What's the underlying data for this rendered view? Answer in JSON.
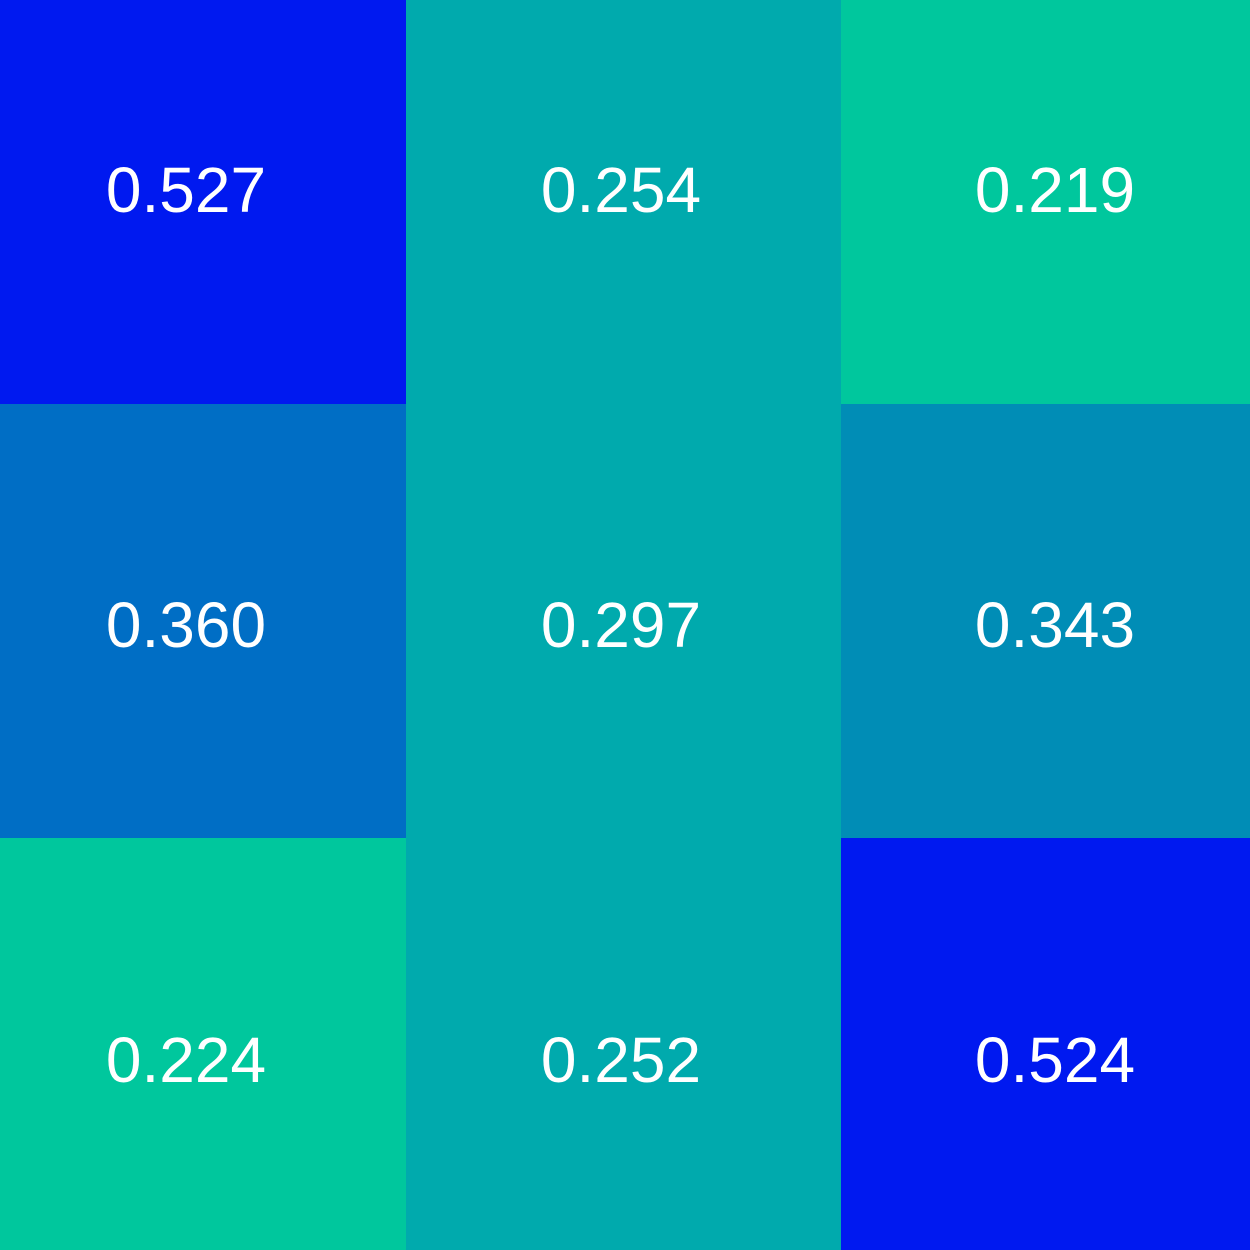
{
  "chart_data": {
    "type": "heatmap",
    "title": "",
    "xlabel": "",
    "ylabel": "",
    "rows": 3,
    "cols": 3,
    "values": [
      [
        0.527,
        0.254,
        0.219
      ],
      [
        0.36,
        0.297,
        0.343
      ],
      [
        0.224,
        0.252,
        0.524
      ]
    ],
    "labels": [
      [
        "0.527",
        "0.254",
        "0.219"
      ],
      [
        "0.360",
        "0.297",
        "0.343"
      ],
      [
        "0.224",
        "0.252",
        "0.524"
      ]
    ],
    "colors": [
      [
        "#0019F0",
        "#00AAAD",
        "#00C79D"
      ],
      [
        "#006EC5",
        "#00AAAD",
        "#008DB6"
      ],
      [
        "#00C79D",
        "#00AAAD",
        "#0019F0"
      ]
    ],
    "label_color": "#FFFFFF",
    "grid": false,
    "legend": "none"
  }
}
